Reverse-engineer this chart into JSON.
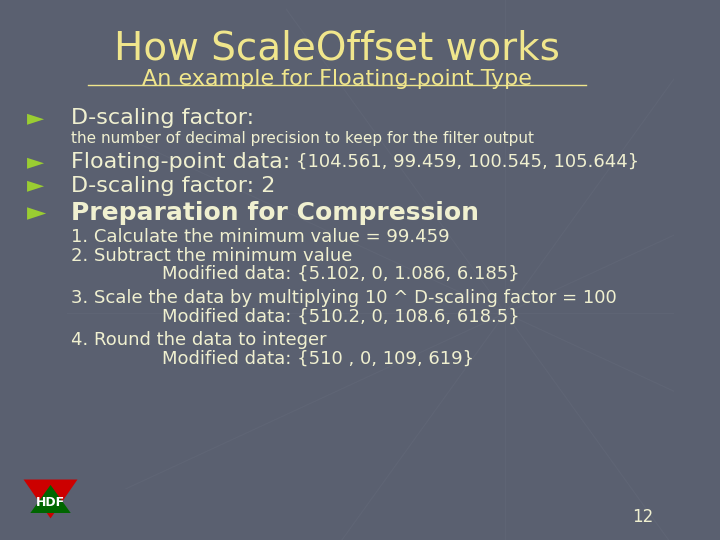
{
  "title": "How ScaleOffset works",
  "subtitle": "An example for Floating-point Type",
  "bg_color": "#5a6070",
  "title_color": "#f0e68c",
  "subtitle_color": "#f0e68c",
  "text_color": "#f0f0d0",
  "bullet_color": "#9acd32",
  "page_number": "12",
  "hdf_outer": "#cc0000",
  "hdf_inner": "#006600",
  "hdf_text": "#ffffff"
}
